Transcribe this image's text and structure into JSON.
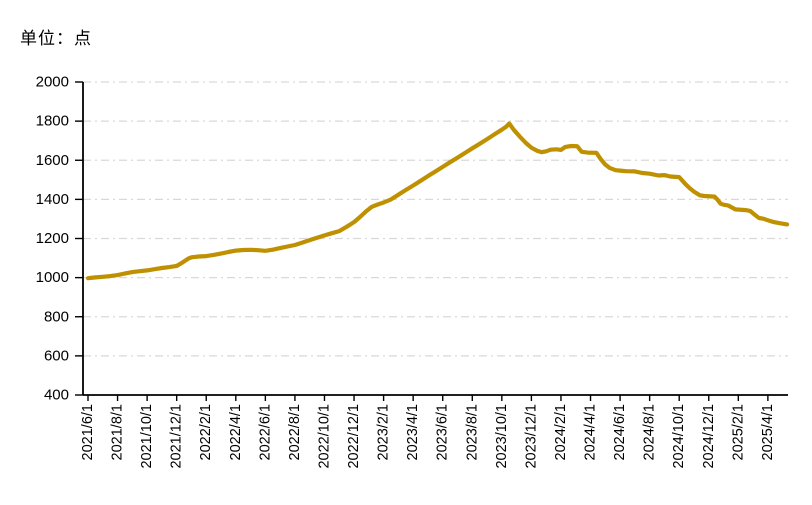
{
  "page": {
    "background": "#FFFFFF"
  },
  "unit_label": "单位：点",
  "chart_data": {
    "type": "line",
    "title": "",
    "unit_label": "单位：点",
    "legend": "none",
    "grid": "horizontal-dash-dot",
    "colors": {
      "line": "#BF9000",
      "gridline": "#D9D9D9",
      "axis": "#000000",
      "text": "#000000"
    },
    "y_axis": {
      "min": 400,
      "max": 2000,
      "tick_interval": 200,
      "tick_labels": [
        "2000",
        "1800",
        "1600",
        "1400",
        "1200",
        "1000",
        "800",
        "600",
        "400"
      ]
    },
    "x_axis": {
      "months_per_tick": 2,
      "tick_labels": [
        "2021/6/1",
        "2021/8/1",
        "2021/10/1",
        "2021/12/1",
        "2022/2/1",
        "2022/4/1",
        "2022/6/1",
        "2022/8/1",
        "2022/10/1",
        "2022/12/1",
        "2023/2/1",
        "2023/4/1",
        "2023/6/1",
        "2023/8/1",
        "2023/10/1",
        "2023/12/1",
        "2024/2/1",
        "2024/4/1",
        "2024/6/1",
        "2024/8/1",
        "2024/10/1",
        "2024/12/1",
        "2025/2/1",
        "2025/4/1"
      ]
    },
    "series": [
      {
        "x_unit": "months since 2021/6/1",
        "points": [
          [
            0,
            997
          ],
          [
            0.5,
            1001
          ],
          [
            1,
            1004
          ],
          [
            1.5,
            1008
          ],
          [
            2,
            1013
          ],
          [
            2.5,
            1021
          ],
          [
            3,
            1028
          ],
          [
            3.5,
            1033
          ],
          [
            4,
            1037
          ],
          [
            4.5,
            1043
          ],
          [
            5,
            1049
          ],
          [
            5.5,
            1054
          ],
          [
            6,
            1060
          ],
          [
            6.4,
            1078
          ],
          [
            6.8,
            1098
          ],
          [
            7,
            1104
          ],
          [
            7.5,
            1108
          ],
          [
            8,
            1110
          ],
          [
            8.5,
            1116
          ],
          [
            9,
            1123
          ],
          [
            9.5,
            1131
          ],
          [
            10,
            1138
          ],
          [
            10.5,
            1141
          ],
          [
            11,
            1142
          ],
          [
            11.5,
            1140
          ],
          [
            12,
            1137
          ],
          [
            12.5,
            1143
          ],
          [
            13,
            1151
          ],
          [
            13.5,
            1159
          ],
          [
            14,
            1167
          ],
          [
            14.5,
            1179
          ],
          [
            15,
            1192
          ],
          [
            15.5,
            1204
          ],
          [
            16,
            1216
          ],
          [
            16.5,
            1227
          ],
          [
            17,
            1238
          ],
          [
            17.5,
            1260
          ],
          [
            18,
            1284
          ],
          [
            18.4,
            1310
          ],
          [
            18.8,
            1338
          ],
          [
            19.2,
            1362
          ],
          [
            19.6,
            1374
          ],
          [
            20,
            1384
          ],
          [
            20.5,
            1400
          ],
          [
            21,
            1424
          ],
          [
            21.5,
            1448
          ],
          [
            22,
            1471
          ],
          [
            22.5,
            1495
          ],
          [
            23,
            1519
          ],
          [
            23.5,
            1542
          ],
          [
            24,
            1566
          ],
          [
            24.5,
            1590
          ],
          [
            25,
            1613
          ],
          [
            25.5,
            1637
          ],
          [
            26,
            1661
          ],
          [
            26.5,
            1684
          ],
          [
            27,
            1708
          ],
          [
            27.5,
            1732
          ],
          [
            28,
            1756
          ],
          [
            28.3,
            1772
          ],
          [
            28.5,
            1788
          ],
          [
            28.8,
            1756
          ],
          [
            29.2,
            1722
          ],
          [
            29.6,
            1690
          ],
          [
            30,
            1664
          ],
          [
            30.4,
            1648
          ],
          [
            30.7,
            1641
          ],
          [
            31,
            1646
          ],
          [
            31.3,
            1654
          ],
          [
            31.7,
            1656
          ],
          [
            32,
            1653
          ],
          [
            32.3,
            1668
          ],
          [
            32.7,
            1673
          ],
          [
            33.1,
            1672
          ],
          [
            33.4,
            1643
          ],
          [
            33.8,
            1639
          ],
          [
            34.4,
            1638
          ],
          [
            34.7,
            1605
          ],
          [
            35,
            1578
          ],
          [
            35.3,
            1561
          ],
          [
            35.7,
            1549
          ],
          [
            36,
            1547
          ],
          [
            36.4,
            1544
          ],
          [
            37,
            1543
          ],
          [
            37.5,
            1535
          ],
          [
            38,
            1531
          ],
          [
            38.6,
            1522
          ],
          [
            39,
            1524
          ],
          [
            39.4,
            1517
          ],
          [
            40,
            1514
          ],
          [
            40.4,
            1480
          ],
          [
            40.7,
            1458
          ],
          [
            41,
            1440
          ],
          [
            41.4,
            1421
          ],
          [
            41.7,
            1417
          ],
          [
            42.4,
            1414
          ],
          [
            42.6,
            1398
          ],
          [
            42.8,
            1378
          ],
          [
            43,
            1373
          ],
          [
            43.3,
            1369
          ],
          [
            43.8,
            1349
          ],
          [
            44.5,
            1345
          ],
          [
            44.8,
            1341
          ],
          [
            45.1,
            1322
          ],
          [
            45.4,
            1305
          ],
          [
            45.7,
            1301
          ],
          [
            46,
            1293
          ],
          [
            46.4,
            1284
          ],
          [
            46.8,
            1278
          ],
          [
            47.3,
            1272
          ]
        ]
      }
    ]
  }
}
